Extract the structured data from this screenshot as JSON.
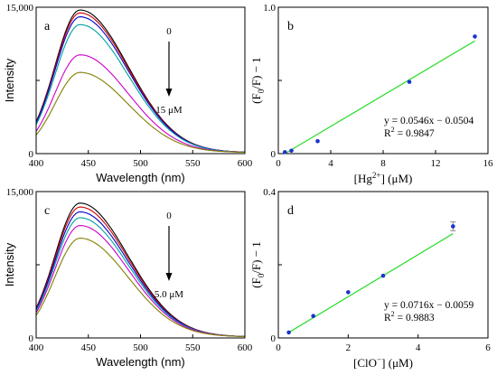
{
  "chart_data": [
    {
      "id": "a",
      "type": "line",
      "panel_label": "a",
      "xlabel": "Wavelength (nm)",
      "ylabel": "Intensity",
      "xlim": [
        400,
        600
      ],
      "ylim": [
        0,
        15000
      ],
      "xticks": [
        "400",
        "450",
        "500",
        "550",
        "600"
      ],
      "yticks": [
        "0",
        "",
        "15,000"
      ],
      "ytick_values": [
        0,
        7500,
        15000
      ],
      "peak_wavelength": 442,
      "series": [
        {
          "color": "#000000",
          "peak": 14600
        },
        {
          "color": "#cc0000",
          "peak": 14300
        },
        {
          "color": "#0000cc",
          "peak": 13900
        },
        {
          "color": "#00a0a0",
          "peak": 13100
        },
        {
          "color": "#cc00cc",
          "peak": 10000
        },
        {
          "color": "#808000",
          "peak": 8200
        }
      ],
      "annotation_top": "0",
      "annotation_bottom": "15 μM"
    },
    {
      "id": "b",
      "type": "scatter",
      "panel_label": "b",
      "ylabel_parts": [
        "(F",
        "0",
        "/F) − 1"
      ],
      "xlabel_parts": [
        "[Hg",
        "2+",
        "] (μM)"
      ],
      "xlim": [
        0,
        16
      ],
      "ylim": [
        0,
        1
      ],
      "xticks": [
        "0",
        "4",
        "8",
        "12",
        "16"
      ],
      "xtick_values": [
        0,
        4,
        8,
        12,
        16
      ],
      "yticks": [
        "0",
        "",
        "1.0"
      ],
      "ytick_values": [
        0,
        0.5,
        1.0
      ],
      "x": [
        0.5,
        1,
        3,
        10,
        15
      ],
      "y": [
        0.01,
        0.02,
        0.085,
        0.49,
        0.8
      ],
      "fit_line": {
        "x": [
          0.5,
          15
        ],
        "y": [
          0,
          0.77
        ]
      },
      "fit_color": "#33dd33",
      "point_color": "#1a33cc",
      "equation": "y = 0.0546x − 0.0504",
      "r2_parts": [
        "R",
        "2",
        " = 0.9847"
      ]
    },
    {
      "id": "c",
      "type": "line",
      "panel_label": "c",
      "xlabel": "Wavelength (nm)",
      "ylabel": "Intensity",
      "xlim": [
        400,
        600
      ],
      "ylim": [
        0,
        15000
      ],
      "xticks": [
        "400",
        "450",
        "500",
        "550",
        "600"
      ],
      "yticks": [
        "0",
        "",
        "15,000"
      ],
      "ytick_values": [
        0,
        7500,
        15000
      ],
      "peak_wavelength": 442,
      "series": [
        {
          "color": "#000000",
          "peak": 13700
        },
        {
          "color": "#cc0000",
          "peak": 13300
        },
        {
          "color": "#0000cc",
          "peak": 12800
        },
        {
          "color": "#00a0a0",
          "peak": 12200
        },
        {
          "color": "#cc00cc",
          "peak": 11400
        },
        {
          "color": "#808000",
          "peak": 10100
        }
      ],
      "annotation_top": "0",
      "annotation_bottom": "5.0 μM"
    },
    {
      "id": "d",
      "type": "scatter",
      "panel_label": "d",
      "ylabel_parts": [
        "(F",
        "0",
        "/F) − 1"
      ],
      "xlabel_parts": [
        "[ClO",
        "−",
        "] (μM)"
      ],
      "xlim": [
        0,
        6
      ],
      "ylim": [
        0,
        0.4
      ],
      "xticks": [
        "0",
        "2",
        "4",
        "6"
      ],
      "xtick_values": [
        0,
        2,
        4,
        6
      ],
      "yticks": [
        "0",
        "",
        "0.4"
      ],
      "ytick_values": [
        0,
        0.2,
        0.4
      ],
      "x": [
        0.3,
        1,
        2,
        3,
        5
      ],
      "y": [
        0.015,
        0.06,
        0.125,
        0.17,
        0.305
      ],
      "error": [
        0,
        0,
        0,
        0,
        0.012
      ],
      "fit_line": {
        "x": [
          0.3,
          5
        ],
        "y": [
          0.015,
          0.285
        ]
      },
      "fit_color": "#33dd33",
      "point_color": "#1a33cc",
      "equation": "y = 0.0716x − 0.0059",
      "r2_parts": [
        "R",
        "2",
        " = 0.9883"
      ]
    }
  ]
}
